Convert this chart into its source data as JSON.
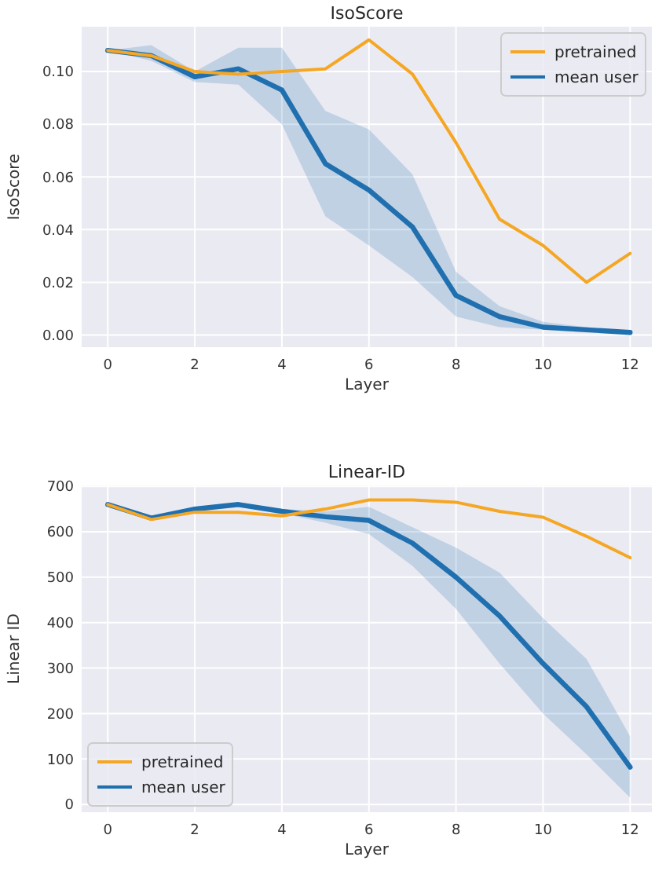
{
  "chart_data": [
    {
      "type": "line",
      "title": "IsoScore",
      "xlabel": "Layer",
      "ylabel": "IsoScore",
      "x": [
        0,
        1,
        2,
        3,
        4,
        5,
        6,
        7,
        8,
        9,
        10,
        11,
        12
      ],
      "xlim": [
        -0.6,
        12.5
      ],
      "xticks": [
        0,
        2,
        4,
        6,
        8,
        10,
        12
      ],
      "ylim": [
        -0.0046,
        0.117
      ],
      "yticks": [
        {
          "value": 0,
          "label": "0.00"
        },
        {
          "value": 0.02,
          "label": "0.02"
        },
        {
          "value": 0.04,
          "label": "0.04"
        },
        {
          "value": 0.06,
          "label": "0.06"
        },
        {
          "value": 0.08,
          "label": "0.08"
        },
        {
          "value": 0.1,
          "label": "0.10"
        }
      ],
      "grid": true,
      "legend": "top right",
      "series": [
        {
          "name": "pretrained",
          "color": "#f5a623",
          "values": [
            0.108,
            0.106,
            0.1,
            0.099,
            0.1,
            0.101,
            0.112,
            0.099,
            0.073,
            0.044,
            0.034,
            0.02,
            0.031
          ]
        },
        {
          "name": "mean user",
          "color": "#2070b0",
          "values": [
            0.108,
            0.106,
            0.098,
            0.101,
            0.093,
            0.065,
            0.055,
            0.041,
            0.015,
            0.007,
            0.003,
            0.002,
            0.001
          ],
          "lower": [
            0.108,
            0.104,
            0.096,
            0.095,
            0.08,
            0.045,
            0.034,
            0.022,
            0.007,
            0.003,
            0.002,
            0.001,
            0.001
          ],
          "upper": [
            0.108,
            0.11,
            0.1,
            0.109,
            0.109,
            0.085,
            0.078,
            0.061,
            0.024,
            0.011,
            0.005,
            0.003,
            0.001
          ]
        }
      ]
    },
    {
      "type": "line",
      "title": "Linear-ID",
      "xlabel": "Layer",
      "ylabel": "Linear ID",
      "x": [
        0,
        1,
        2,
        3,
        4,
        5,
        6,
        7,
        8,
        9,
        10,
        11,
        12
      ],
      "xlim": [
        -0.6,
        12.5
      ],
      "xticks": [
        0,
        2,
        4,
        6,
        8,
        10,
        12
      ],
      "ylim": [
        -17,
        702
      ],
      "yticks": [
        0,
        100,
        200,
        300,
        400,
        500,
        600,
        700
      ],
      "grid": true,
      "legend": "bottom left",
      "series": [
        {
          "name": "pretrained",
          "color": "#f5a623",
          "values": [
            660,
            627,
            643,
            643,
            635,
            650,
            670,
            670,
            665,
            645,
            632,
            590,
            543
          ]
        },
        {
          "name": "mean user",
          "color": "#2070b0",
          "values": [
            660,
            630,
            650,
            660,
            645,
            633,
            625,
            575,
            500,
            415,
            310,
            215,
            82
          ],
          "lower": [
            660,
            628,
            648,
            656,
            640,
            620,
            595,
            525,
            430,
            310,
            200,
            110,
            15
          ],
          "upper": [
            660,
            632,
            652,
            662,
            650,
            645,
            655,
            610,
            565,
            510,
            410,
            320,
            150
          ]
        }
      ]
    }
  ]
}
